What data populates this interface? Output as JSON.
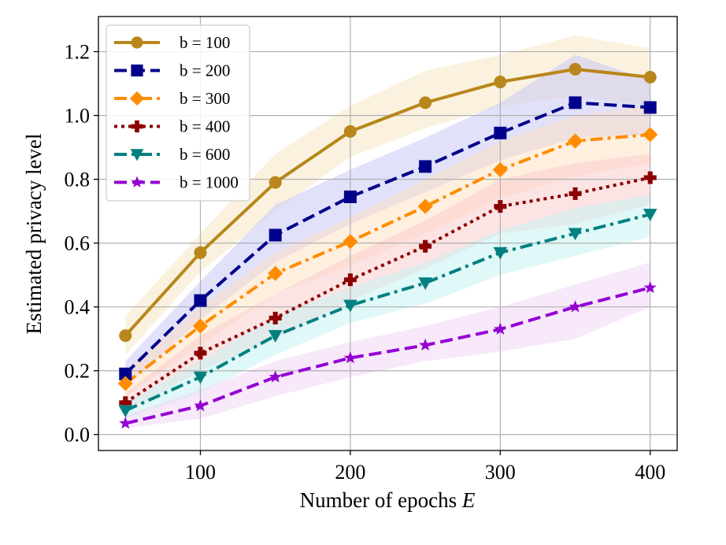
{
  "chart_data": {
    "type": "line",
    "title": "",
    "xlabel": "Number of epochs",
    "xlabel_var": "E",
    "ylabel": "Estimated privacy level",
    "xlim": [
      32,
      418
    ],
    "ylim": [
      -0.05,
      1.31
    ],
    "xticks": [
      100,
      200,
      300,
      400
    ],
    "xtick_labels": [
      "100",
      "200",
      "300",
      "400"
    ],
    "yticks": [
      0.0,
      0.2,
      0.4,
      0.6,
      0.8,
      1.0,
      1.2
    ],
    "ytick_labels": [
      "0.0",
      "0.2",
      "0.4",
      "0.6",
      "0.8",
      "1.0",
      "1.2"
    ],
    "grid": true,
    "legend_position": "top-left",
    "x": [
      50,
      100,
      150,
      200,
      250,
      300,
      350,
      400
    ],
    "series": [
      {
        "name": "b = 100",
        "color": "#b8861b",
        "band_color": "#f5e6bf",
        "marker": "circle",
        "dash": "solid",
        "values": [
          0.31,
          0.57,
          0.79,
          0.95,
          1.04,
          1.105,
          1.145,
          1.12
        ],
        "lower": [
          0.25,
          0.51,
          0.7,
          0.87,
          0.96,
          1.03,
          1.06,
          1.03
        ],
        "upper": [
          0.37,
          0.63,
          0.88,
          1.03,
          1.14,
          1.19,
          1.25,
          1.21
        ]
      },
      {
        "name": "b = 200",
        "color": "#00008b",
        "band_color": "#c4c4f6",
        "marker": "square",
        "dash": "dashed",
        "values": [
          0.19,
          0.42,
          0.625,
          0.745,
          0.84,
          0.945,
          1.04,
          1.025
        ],
        "lower": [
          0.15,
          0.36,
          0.54,
          0.66,
          0.76,
          0.86,
          0.93,
          0.94
        ],
        "upper": [
          0.23,
          0.48,
          0.72,
          0.83,
          0.93,
          1.04,
          1.19,
          1.11
        ]
      },
      {
        "name": "b = 300",
        "color": "#ff8c00",
        "band_color": "#fde0bf",
        "marker": "diamond",
        "dash": "dashdot",
        "values": [
          0.16,
          0.34,
          0.505,
          0.605,
          0.715,
          0.83,
          0.92,
          0.94
        ],
        "lower": [
          0.12,
          0.28,
          0.44,
          0.53,
          0.63,
          0.74,
          0.81,
          0.85
        ],
        "upper": [
          0.2,
          0.4,
          0.57,
          0.68,
          0.8,
          0.92,
          1.0,
          1.03
        ]
      },
      {
        "name": "b = 400",
        "color": "#8b0000",
        "band_color": "#f9c9c9",
        "marker": "plus",
        "dash": "dotted",
        "values": [
          0.1,
          0.255,
          0.365,
          0.485,
          0.59,
          0.715,
          0.755,
          0.805
        ],
        "lower": [
          0.07,
          0.2,
          0.3,
          0.42,
          0.52,
          0.63,
          0.66,
          0.72
        ],
        "upper": [
          0.13,
          0.31,
          0.44,
          0.56,
          0.67,
          0.8,
          0.85,
          0.88
        ]
      },
      {
        "name": "b = 600",
        "color": "#008080",
        "band_color": "#c3f2f2",
        "marker": "triangle-down",
        "dash": "dashdot",
        "values": [
          0.075,
          0.18,
          0.31,
          0.405,
          0.475,
          0.57,
          0.63,
          0.69
        ],
        "lower": [
          0.05,
          0.13,
          0.25,
          0.35,
          0.41,
          0.5,
          0.56,
          0.62
        ],
        "upper": [
          0.1,
          0.23,
          0.37,
          0.46,
          0.54,
          0.64,
          0.71,
          0.75
        ]
      },
      {
        "name": "b = 1000",
        "color": "#9400d3",
        "band_color": "#efd2f6",
        "marker": "star",
        "dash": "dashed",
        "values": [
          0.035,
          0.09,
          0.18,
          0.24,
          0.28,
          0.33,
          0.4,
          0.46
        ],
        "lower": [
          0.02,
          0.05,
          0.12,
          0.18,
          0.23,
          0.26,
          0.3,
          0.4
        ],
        "upper": [
          0.06,
          0.14,
          0.23,
          0.29,
          0.34,
          0.4,
          0.47,
          0.54
        ]
      }
    ]
  }
}
